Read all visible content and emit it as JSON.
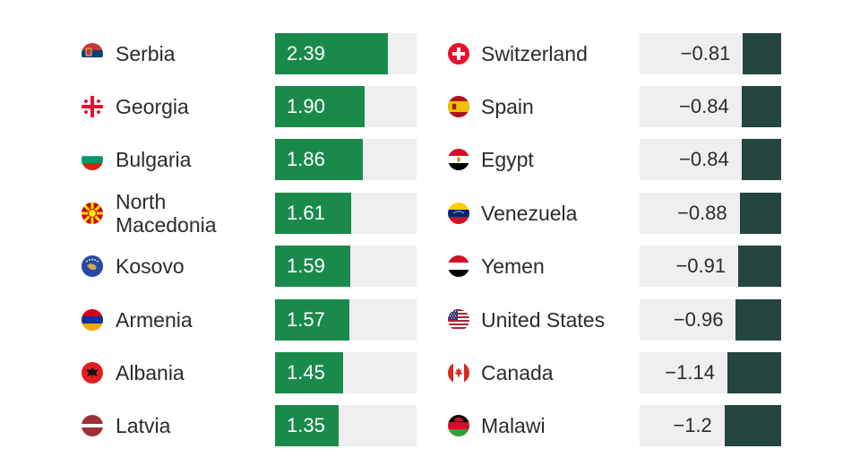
{
  "chart_data": [
    {
      "type": "bar",
      "orientation": "horizontal",
      "categories": [
        "Serbia",
        "Georgia",
        "Bulgaria",
        "North Macedonia",
        "Kosovo",
        "Armenia",
        "Albania",
        "Latvia"
      ],
      "values": [
        2.39,
        1.9,
        1.86,
        1.61,
        1.59,
        1.57,
        1.45,
        1.35
      ],
      "labels": [
        "2.39",
        "1.90",
        "1.86",
        "1.61",
        "1.59",
        "1.57",
        "1.45",
        "1.35"
      ],
      "xlim": [
        0,
        3
      ],
      "bar_color": "#1a8a4a",
      "track_color": "#efefef",
      "label_color": "#ffffff",
      "flags": [
        "serbia-flag-icon",
        "georgia-flag-icon",
        "bulgaria-flag-icon",
        "north-macedonia-flag-icon",
        "kosovo-flag-icon",
        "armenia-flag-icon",
        "albania-flag-icon",
        "latvia-flag-icon"
      ]
    },
    {
      "type": "bar",
      "orientation": "horizontal",
      "categories": [
        "Switzerland",
        "Spain",
        "Egypt",
        "Venezuela",
        "Yemen",
        "United States",
        "Canada",
        "Malawi"
      ],
      "values": [
        -0.81,
        -0.84,
        -0.84,
        -0.88,
        -0.91,
        -0.96,
        -1.14,
        -1.2
      ],
      "labels": [
        "−0.81",
        "−0.84",
        "−0.84",
        "−0.88",
        "−0.91",
        "−0.96",
        "−1.14",
        "−1.2"
      ],
      "xlim": [
        -3,
        0
      ],
      "bar_color": "#244540",
      "track_color": "#efefef",
      "label_color": "#2b2b2b",
      "flags": [
        "switzerland-flag-icon",
        "spain-flag-icon",
        "egypt-flag-icon",
        "venezuela-flag-icon",
        "yemen-flag-icon",
        "united-states-flag-icon",
        "canada-flag-icon",
        "malawi-flag-icon"
      ]
    }
  ]
}
